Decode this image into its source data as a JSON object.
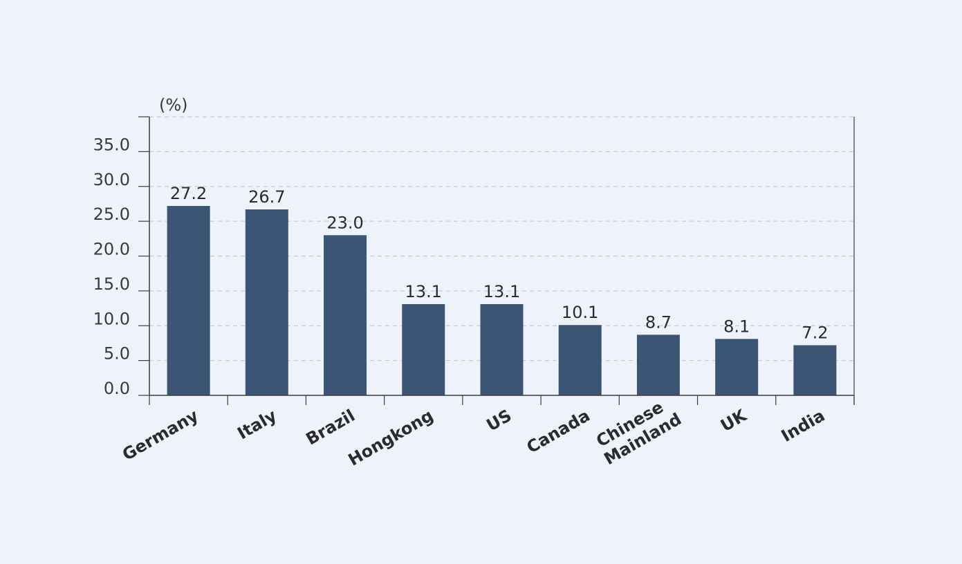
{
  "chart_data": {
    "type": "bar",
    "unit": "(%)",
    "categories": [
      "Germany",
      "Italy",
      "Brazil",
      "Hongkong",
      "US",
      "Canada",
      [
        "Chinese",
        "Mainland"
      ],
      "UK",
      "India"
    ],
    "values": [
      27.2,
      26.7,
      23.0,
      13.1,
      13.1,
      10.1,
      8.7,
      8.1,
      7.2
    ],
    "value_labels": [
      "27.2",
      "26.7",
      "23.0",
      "13.1",
      "13.1",
      "10.1",
      "8.7",
      "8.1",
      "7.2"
    ],
    "yticks": [
      "0.0",
      "5.0",
      "10.0",
      "15.0",
      "20.0",
      "25.0",
      "30.0",
      "35.0"
    ],
    "ylim": [
      0,
      40
    ],
    "grid": true,
    "bar_color": "#3c5574",
    "axis_color": "#3a3a3a",
    "grid_color": "#c3ccd6"
  }
}
